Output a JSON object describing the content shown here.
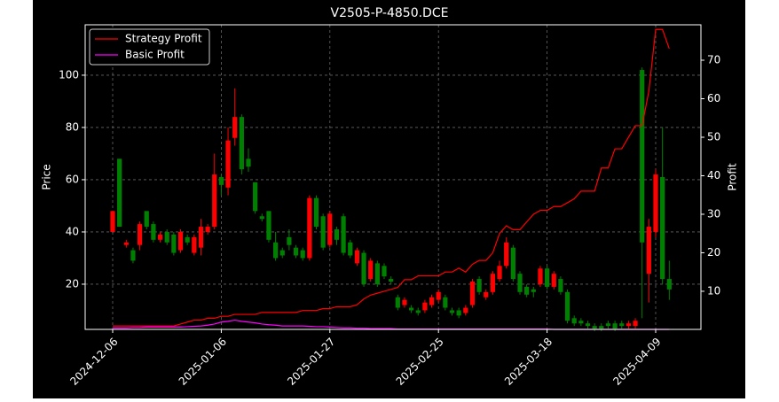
{
  "chart_data": {
    "type": "candlestick",
    "title": "V2505-P-4850.DCE",
    "ylabel": "Price",
    "y2label": "Profit",
    "categories": [
      "2024-12-06",
      null,
      null,
      null,
      null,
      null,
      null,
      null,
      null,
      null,
      null,
      null,
      null,
      null,
      null,
      null,
      "2025-01-06",
      null,
      null,
      null,
      null,
      null,
      null,
      null,
      null,
      null,
      null,
      null,
      null,
      null,
      null,
      null,
      "2025-01-27",
      null,
      null,
      null,
      null,
      null,
      null,
      null,
      null,
      null,
      null,
      null,
      null,
      null,
      null,
      null,
      "2025-02-25",
      null,
      null,
      null,
      null,
      null,
      null,
      null,
      null,
      null,
      null,
      null,
      null,
      null,
      null,
      null,
      "2025-03-18",
      null,
      null,
      null,
      null,
      null,
      null,
      null,
      null,
      null,
      null,
      null,
      null,
      null,
      null,
      null,
      "2025-04-09",
      null,
      null
    ],
    "open": [
      40,
      68,
      35,
      33,
      35,
      48,
      43,
      37,
      40,
      39,
      33,
      38,
      32,
      34,
      40,
      42,
      61,
      57,
      76,
      84,
      68,
      59,
      46,
      48,
      36,
      33,
      38,
      34,
      33,
      30,
      53,
      46,
      35,
      41,
      46,
      36,
      28,
      32,
      22,
      28,
      27,
      22,
      15,
      12,
      11,
      10,
      10,
      12,
      14,
      15,
      10,
      10,
      9,
      12,
      22,
      15,
      17,
      22,
      27,
      34,
      24,
      19,
      18,
      20,
      26,
      19,
      22,
      17,
      7,
      6,
      5,
      4,
      4,
      5,
      5,
      5,
      4,
      4,
      102,
      24,
      40,
      61,
      22
    ],
    "close": [
      48,
      42,
      36,
      29,
      43,
      42,
      37,
      39,
      36,
      32,
      40,
      36,
      38,
      42,
      42,
      62,
      58,
      75,
      84,
      64,
      65,
      48,
      45,
      37,
      30,
      31,
      35,
      31,
      30,
      53,
      42,
      34,
      47,
      37,
      32,
      31,
      33,
      20,
      29,
      20,
      23,
      21,
      11,
      14,
      10,
      9,
      13,
      15,
      17,
      11,
      9,
      8,
      11,
      21,
      17,
      17,
      24,
      27,
      36,
      22,
      17,
      16,
      17,
      26,
      19,
      24,
      17,
      6,
      5,
      5,
      4,
      3,
      3,
      4,
      3,
      4,
      5,
      6,
      36,
      42,
      62,
      22,
      18
    ],
    "high": [
      48,
      68,
      37,
      34,
      44,
      48,
      44,
      40,
      41,
      40,
      41,
      39,
      39,
      45,
      43,
      70,
      62,
      80,
      95,
      85,
      72,
      59,
      47,
      48,
      40,
      34,
      41,
      35,
      34,
      54,
      54,
      47,
      48,
      42,
      47,
      37,
      34,
      33,
      30,
      29,
      28,
      23,
      16,
      15,
      12,
      11,
      14,
      16,
      18,
      16,
      11,
      11,
      12,
      22,
      23,
      18,
      25,
      29,
      38,
      35,
      25,
      20,
      19,
      27,
      27,
      25,
      23,
      18,
      8,
      7,
      6,
      5,
      5,
      6,
      6,
      6,
      6,
      7,
      103,
      45,
      64,
      80,
      29
    ],
    "low": [
      40,
      42,
      34,
      28,
      33,
      41,
      36,
      36,
      35,
      31,
      32,
      35,
      31,
      31,
      39,
      41,
      54,
      54,
      73,
      62,
      63,
      47,
      44,
      36,
      29,
      30,
      33,
      30,
      29,
      29,
      41,
      33,
      34,
      35,
      31,
      30,
      27,
      19,
      21,
      19,
      22,
      20,
      10,
      11,
      9,
      8,
      9,
      11,
      13,
      10,
      8,
      7,
      8,
      11,
      16,
      14,
      16,
      21,
      26,
      21,
      16,
      15,
      15,
      19,
      18,
      18,
      16,
      5,
      4,
      4,
      3,
      2,
      2,
      3,
      2,
      3,
      3,
      3,
      7,
      13,
      38,
      20,
      14
    ],
    "up_color": "#ff0000",
    "down_color": "#008000",
    "series": [
      {
        "name": "Strategy Profit",
        "color": "#ff0000",
        "axis": "y2",
        "values": [
          1,
          1,
          1,
          1,
          1,
          1,
          1,
          1,
          1,
          1,
          1.5,
          2,
          2.5,
          2.5,
          3,
          3,
          3.5,
          3.5,
          4,
          4,
          4,
          4,
          4.5,
          4.5,
          4.5,
          4.5,
          4.5,
          4.5,
          5,
          5,
          5,
          5.5,
          5.5,
          6,
          6,
          6,
          6.5,
          8,
          9,
          9.5,
          10,
          10.5,
          11,
          13,
          13,
          14,
          14,
          14,
          14,
          15,
          15,
          16,
          15,
          17,
          18,
          18,
          20,
          25,
          27,
          26,
          26,
          28,
          30,
          31,
          31,
          32,
          32,
          33,
          34,
          36,
          36,
          36,
          42,
          42,
          47,
          47,
          50,
          53,
          53,
          62,
          78,
          78,
          73
        ]
      },
      {
        "name": "Basic Profit",
        "color": "#ff00ff",
        "axis": "y2",
        "values": [
          0.5,
          0.5,
          0.5,
          0.6,
          0.6,
          0.7,
          0.7,
          0.7,
          0.7,
          0.7,
          0.7,
          0.8,
          0.9,
          1,
          1.2,
          1.5,
          2,
          2.2,
          2.5,
          2.2,
          2,
          1.8,
          1.5,
          1.3,
          1.2,
          1,
          1,
          1,
          1,
          0.9,
          0.8,
          0.8,
          0.7,
          0.6,
          0.5,
          0.5,
          0.4,
          0.4,
          0.3,
          0.3,
          0.3,
          0.3,
          0.2,
          0.2,
          0.2,
          0.2,
          0.2,
          0.2,
          0.2,
          0.2,
          0.2,
          0.2,
          0.2,
          0.2,
          0.2,
          0.2,
          0.2,
          0.2,
          0.2,
          0.2,
          0.2,
          0.2,
          0.2,
          0.2,
          0.2,
          0.1,
          0.1,
          0.1,
          0.1,
          0.1,
          0.1,
          0.1,
          0.1,
          0.1,
          0.1,
          0.1,
          0.1,
          0.1,
          0.1,
          0.1,
          0.1,
          0.1,
          0.1
        ]
      }
    ],
    "ylim": [
      2.7,
      119.3
    ],
    "yticks": [
      20,
      40,
      60,
      80,
      100
    ],
    "y2lim": [
      0.1,
      79.2
    ],
    "y2ticks": [
      10,
      20,
      30,
      40,
      50,
      60,
      70
    ],
    "grid": true,
    "legend": "upper left"
  }
}
